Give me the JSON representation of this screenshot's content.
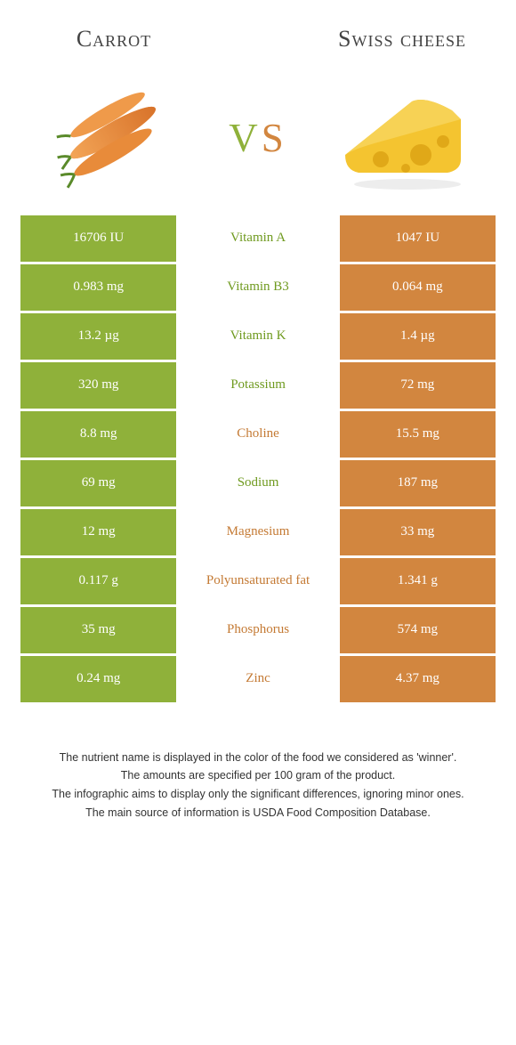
{
  "colors": {
    "carrot": "#8fb13a",
    "cheese": "#d2863f",
    "carrot_text": "#6f9a1f",
    "cheese_text": "#c47a34"
  },
  "header": {
    "left_title": "Carrot",
    "right_title": "Swiss cheese",
    "vs_v": "v",
    "vs_s": "s"
  },
  "rows": [
    {
      "nutrient": "Vitamin A",
      "left": "16706 IU",
      "right": "1047 IU",
      "winner": "left"
    },
    {
      "nutrient": "Vitamin B3",
      "left": "0.983 mg",
      "right": "0.064 mg",
      "winner": "left"
    },
    {
      "nutrient": "Vitamin K",
      "left": "13.2 µg",
      "right": "1.4 µg",
      "winner": "left"
    },
    {
      "nutrient": "Potassium",
      "left": "320 mg",
      "right": "72 mg",
      "winner": "left"
    },
    {
      "nutrient": "Choline",
      "left": "8.8 mg",
      "right": "15.5 mg",
      "winner": "right"
    },
    {
      "nutrient": "Sodium",
      "left": "69 mg",
      "right": "187 mg",
      "winner": "left"
    },
    {
      "nutrient": "Magnesium",
      "left": "12 mg",
      "right": "33 mg",
      "winner": "right"
    },
    {
      "nutrient": "Polyunsaturated fat",
      "left": "0.117 g",
      "right": "1.341 g",
      "winner": "right"
    },
    {
      "nutrient": "Phosphorus",
      "left": "35 mg",
      "right": "574 mg",
      "winner": "right"
    },
    {
      "nutrient": "Zinc",
      "left": "0.24 mg",
      "right": "4.37 mg",
      "winner": "right"
    }
  ],
  "footnotes": [
    "The nutrient name is displayed in the color of the food we considered as 'winner'.",
    "The amounts are specified per 100 gram of the product.",
    "The infographic aims to display only the significant differences, ignoring minor ones.",
    "The main source of information is USDA Food Composition Database."
  ]
}
